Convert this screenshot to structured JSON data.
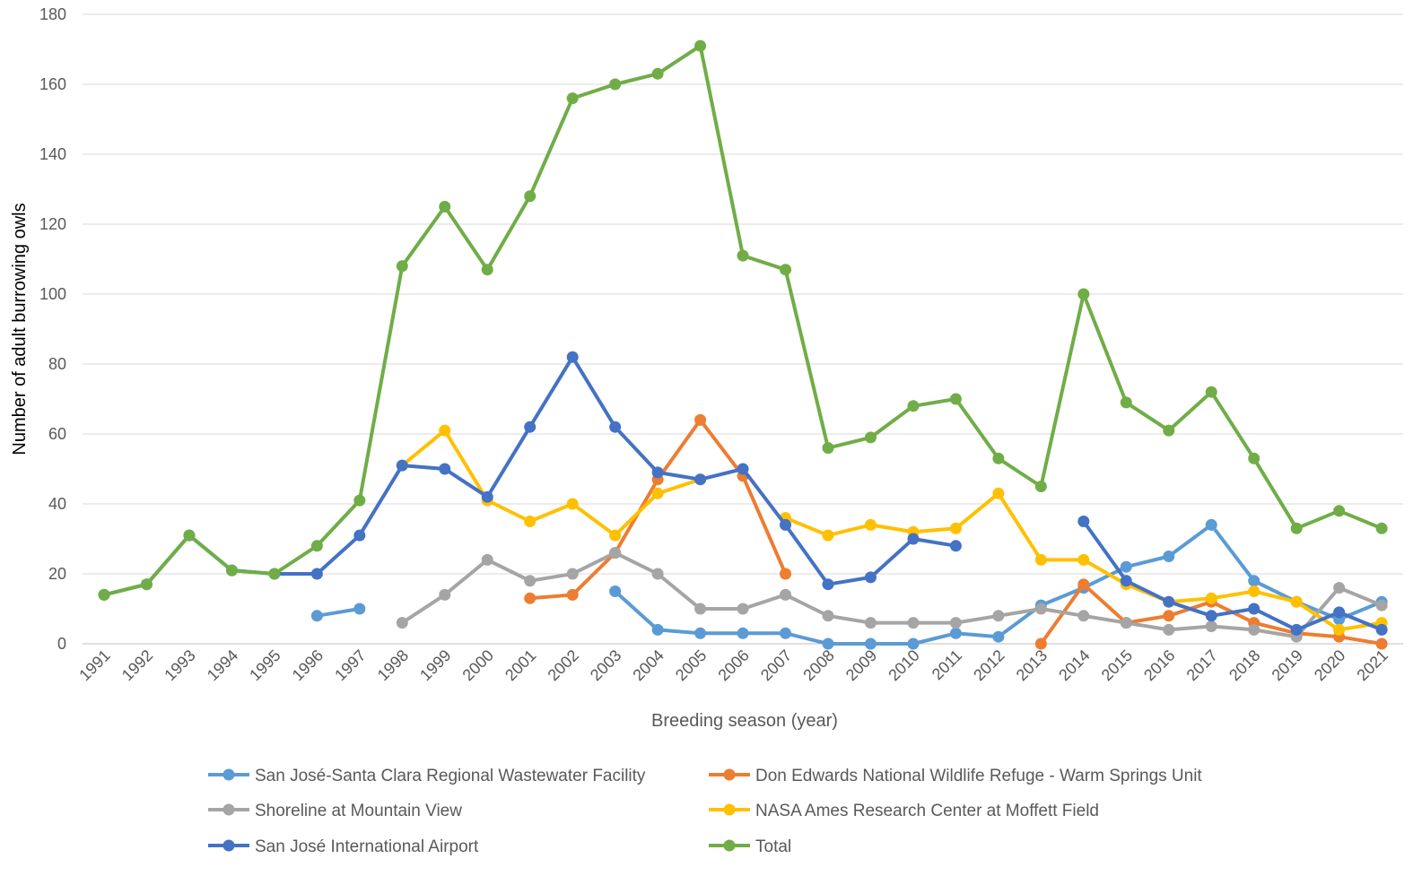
{
  "chart_data": {
    "type": "line",
    "title": "",
    "xlabel": "Breeding season (year)",
    "ylabel": "Number of adult burrowing owls",
    "ylim": [
      0,
      180
    ],
    "yticks": [
      0,
      20,
      40,
      60,
      80,
      100,
      120,
      140,
      160,
      180
    ],
    "grid": true,
    "legend_position": "bottom",
    "x": [
      "1991",
      "1992",
      "1993",
      "1994",
      "1995",
      "1996",
      "1997",
      "1998",
      "1999",
      "2000",
      "2001",
      "2002",
      "2003",
      "2004",
      "2005",
      "2006",
      "2007",
      "2008",
      "2009",
      "2010",
      "2011",
      "2012",
      "2013",
      "2014",
      "2015",
      "2016",
      "2017",
      "2018",
      "2019",
      "2020",
      "2021"
    ],
    "series": [
      {
        "name": "San José-Santa Clara Regional Wastewater Facility",
        "color": "#5b9bd5",
        "values": [
          null,
          null,
          null,
          null,
          null,
          8,
          10,
          null,
          null,
          null,
          null,
          null,
          15,
          4,
          3,
          3,
          3,
          0,
          0,
          0,
          3,
          2,
          11,
          16,
          22,
          25,
          34,
          18,
          12,
          7,
          12
        ]
      },
      {
        "name": "Don Edwards National Wildlife Refuge - Warm Springs Unit",
        "color": "#ed7d31",
        "values": [
          null,
          null,
          null,
          null,
          null,
          null,
          null,
          null,
          null,
          null,
          13,
          14,
          26,
          47,
          64,
          48,
          20,
          null,
          null,
          null,
          null,
          null,
          0,
          17,
          6,
          8,
          12,
          6,
          3,
          2,
          0
        ]
      },
      {
        "name": "Shoreline at Mountain View",
        "color": "#a5a5a5",
        "values": [
          null,
          null,
          null,
          null,
          null,
          null,
          null,
          6,
          14,
          24,
          18,
          20,
          26,
          20,
          10,
          10,
          14,
          8,
          6,
          6,
          6,
          8,
          10,
          8,
          6,
          4,
          5,
          4,
          2,
          16,
          11
        ]
      },
      {
        "name": "NASA Ames Research Center at Moffett Field",
        "color": "#ffc000",
        "values": [
          null,
          null,
          null,
          null,
          null,
          null,
          null,
          51,
          61,
          41,
          35,
          40,
          31,
          43,
          47,
          null,
          36,
          31,
          34,
          32,
          33,
          43,
          24,
          24,
          17,
          12,
          13,
          15,
          12,
          4,
          6
        ]
      },
      {
        "name": "San José International Airport",
        "color": "#4472c4",
        "values": [
          14,
          17,
          31,
          21,
          20,
          20,
          31,
          51,
          50,
          42,
          62,
          82,
          62,
          49,
          47,
          50,
          34,
          17,
          19,
          30,
          28,
          null,
          null,
          35,
          18,
          12,
          8,
          10,
          4,
          9,
          4
        ]
      },
      {
        "name": "Total",
        "color": "#70ad47",
        "values": [
          14,
          17,
          31,
          21,
          20,
          28,
          41,
          108,
          125,
          107,
          128,
          156,
          160,
          163,
          171,
          111,
          107,
          56,
          59,
          68,
          70,
          53,
          45,
          100,
          69,
          61,
          72,
          53,
          33,
          38,
          33
        ]
      }
    ]
  }
}
